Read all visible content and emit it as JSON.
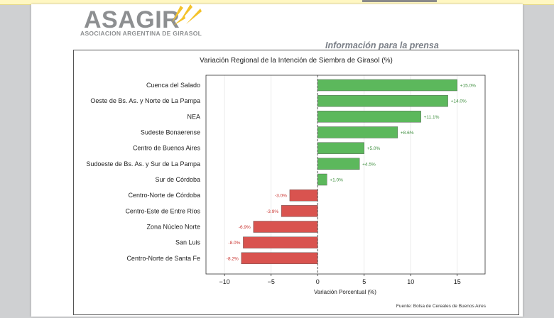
{
  "header": {
    "logo_text": "ASAGIR",
    "logo_subtitle": "ASOCIACION ARGENTINA DE GIRASOL",
    "press_label": "Información para la prensa"
  },
  "chart_data": {
    "type": "bar",
    "orientation": "horizontal",
    "title": "Variación Regional de la Intención de Siembra de Girasol (%)",
    "xlabel": "Variación Porcentual (%)",
    "ylabel": "",
    "source": "Fuente: Bolsa de Cereales de Buenos Aires",
    "xlim": [
      -12,
      18
    ],
    "xticks": [
      -10,
      -5,
      0,
      5,
      10,
      15
    ],
    "xtick_labels": [
      "−10",
      "−5",
      "0",
      "5",
      "10",
      "15"
    ],
    "grid": "vertical",
    "categories": [
      "Cuenca del Salado",
      "Oeste de Bs. As. y Norte de La Pampa",
      "NEA",
      "Sudeste Bonaerense",
      "Centro de Buenos Aires",
      "Sudoeste de Bs. As. y Sur de La Pampa",
      "Sur de Córdoba",
      "Centro-Norte de Córdoba",
      "Centro-Este de Entre Ríos",
      "Zona Núcleo Norte",
      "San Luis",
      "Centro-Norte de Santa Fe"
    ],
    "values": [
      15.0,
      14.0,
      11.1,
      8.6,
      5.0,
      4.5,
      1.0,
      -3.0,
      -3.9,
      -6.9,
      -8.0,
      -8.2
    ],
    "value_labels": [
      "+15.0%",
      "+14.0%",
      "+11.1%",
      "+8.6%",
      "+5.0%",
      "+4.5%",
      "+1.0%",
      "-3.0%",
      "-3.9%",
      "-6.9%",
      "-8.0%",
      "-8.2%"
    ],
    "colors": {
      "positive": "#5cb85c",
      "negative": "#d9534f",
      "positive_label": "#3c8d3c",
      "negative_label": "#c9302c"
    }
  }
}
